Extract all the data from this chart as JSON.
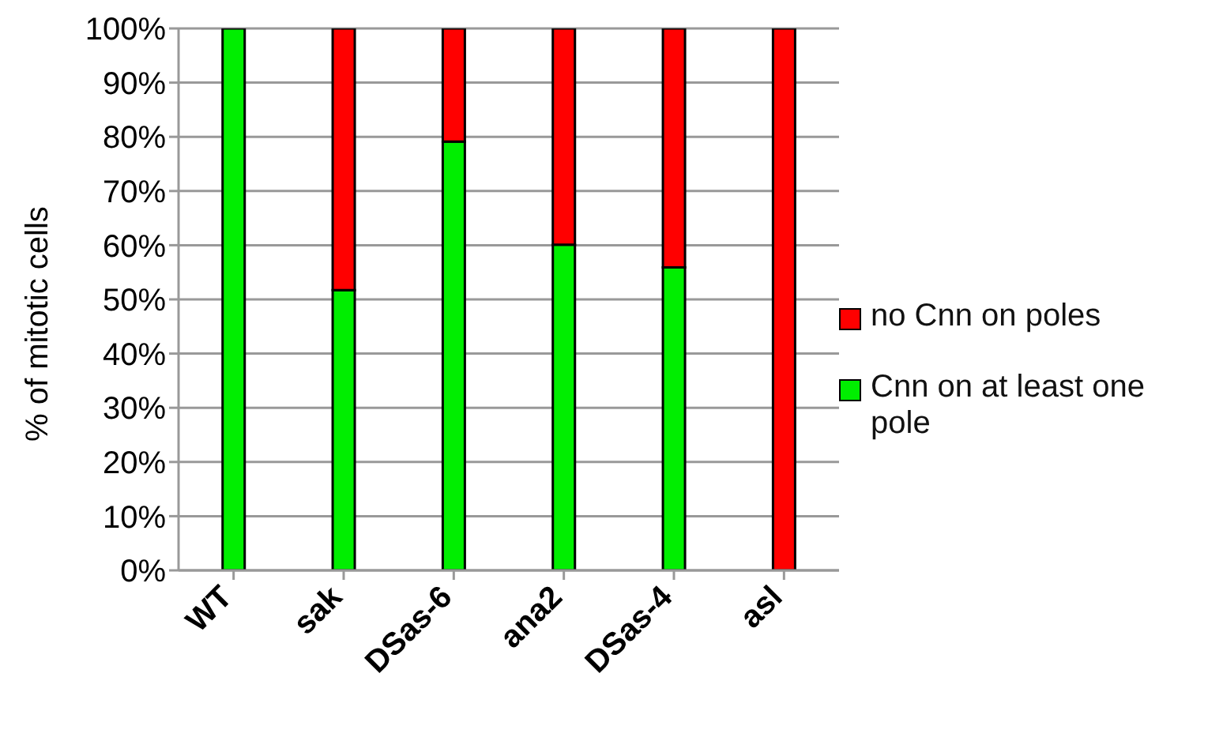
{
  "chart_data": {
    "type": "bar",
    "stacked": true,
    "ylabel": "% of mitotic cells",
    "categories": [
      "WT",
      "sak",
      "DSas-6",
      "ana2",
      "DSas-4",
      "asl"
    ],
    "series": [
      {
        "name": "Cnn on at least one pole",
        "color": "#00ee00",
        "values": [
          100,
          51.7,
          79.1,
          60.1,
          55.9,
          null
        ]
      },
      {
        "name": "no Cnn on poles",
        "color": "#ff0000",
        "values": [
          0,
          48.3,
          20.9,
          39.9,
          44.1,
          100
        ]
      }
    ],
    "ylim": [
      0,
      100
    ],
    "yticks": [
      {
        "value": 0,
        "label": "0%"
      },
      {
        "value": 10,
        "label": "10%"
      },
      {
        "value": 20,
        "label": "20%"
      },
      {
        "value": 30,
        "label": "30%"
      },
      {
        "value": 40,
        "label": "40%"
      },
      {
        "value": 50,
        "label": "50%"
      },
      {
        "value": 60,
        "label": "60%"
      },
      {
        "value": 70,
        "label": "70%"
      },
      {
        "value": 80,
        "label": "80%"
      },
      {
        "value": 90,
        "label": "90%"
      },
      {
        "value": 100,
        "label": "100%"
      }
    ],
    "grid": "y",
    "legend": "right"
  }
}
